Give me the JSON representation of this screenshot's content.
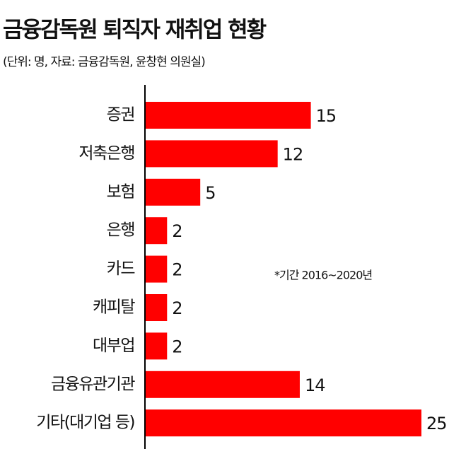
{
  "chart_data": {
    "type": "bar",
    "orientation": "horizontal",
    "title": "금융감독원 퇴직자 재취업 현황",
    "subtitle": "(단위: 명, 자료: 금융감독원, 윤창현 의원실)",
    "annotation": "*기간 2016~2020년",
    "categories": [
      "증권",
      "저축은행",
      "보험",
      "은행",
      "카드",
      "캐피탈",
      "대부업",
      "금융유관기관",
      "기타(대기업 등)"
    ],
    "values": [
      15,
      12,
      5,
      2,
      2,
      2,
      2,
      14,
      25
    ],
    "color": "#ff0000"
  }
}
